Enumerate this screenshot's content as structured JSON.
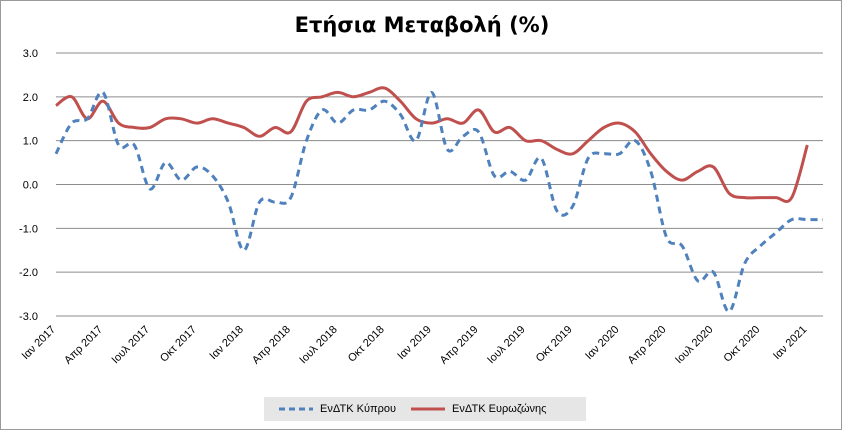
{
  "title": "Ετήσια Μεταβολή (%)",
  "chart_data": {
    "type": "line",
    "title": "Ετήσια Μεταβολή (%)",
    "xlabel": "",
    "ylabel": "",
    "ylim": [
      -3.0,
      3.0
    ],
    "y_ticks": [
      "3.0",
      "2.0",
      "1.0",
      "0.0",
      "-1.0",
      "-2.0",
      "-3.0"
    ],
    "y_tick_values": [
      3,
      2,
      1,
      0,
      -1,
      -2,
      -3
    ],
    "x_tick_labels": [
      "Ιαν 2017",
      "Απρ 2017",
      "Ιουλ 2017",
      "Οκτ 2017",
      "Ιαν 2018",
      "Απρ 2018",
      "Ιουλ 2018",
      "Οκτ 2018",
      "Ιαν 2019",
      "Απρ 2019",
      "Ιουλ 2019",
      "Οκτ 2019",
      "Ιαν 2020",
      "Απρ 2020",
      "Ιουλ 2020",
      "Οκτ 2020",
      "Ιαν 2021"
    ],
    "x": [
      "2017-01",
      "2017-02",
      "2017-03",
      "2017-04",
      "2017-05",
      "2017-06",
      "2017-07",
      "2017-08",
      "2017-09",
      "2017-10",
      "2017-11",
      "2017-12",
      "2018-01",
      "2018-02",
      "2018-03",
      "2018-04",
      "2018-05",
      "2018-06",
      "2018-07",
      "2018-08",
      "2018-09",
      "2018-10",
      "2018-11",
      "2018-12",
      "2019-01",
      "2019-02",
      "2019-03",
      "2019-04",
      "2019-05",
      "2019-06",
      "2019-07",
      "2019-08",
      "2019-09",
      "2019-10",
      "2019-11",
      "2019-12",
      "2020-01",
      "2020-02",
      "2020-03",
      "2020-04",
      "2020-05",
      "2020-06",
      "2020-07",
      "2020-08",
      "2020-09",
      "2020-10",
      "2020-11",
      "2020-12",
      "2021-01",
      "2021-02"
    ],
    "grid": true,
    "legend_position": "bottom",
    "series": [
      {
        "name": "ΕνΔΤΚ Κύπρου",
        "color": "#4f81bd",
        "style": "dashed",
        "values": [
          0.7,
          1.4,
          1.5,
          2.1,
          0.9,
          0.9,
          -0.1,
          0.5,
          0.1,
          0.4,
          0.2,
          -0.4,
          -1.5,
          -0.4,
          -0.4,
          -0.3,
          1.0,
          1.7,
          1.4,
          1.7,
          1.7,
          1.9,
          1.6,
          1.0,
          2.1,
          0.8,
          1.1,
          1.2,
          0.2,
          0.3,
          0.1,
          0.6,
          -0.6,
          -0.5,
          0.6,
          0.7,
          0.7,
          1.0,
          0.3,
          -1.2,
          -1.4,
          -2.2,
          -2.0,
          -2.9,
          -1.8,
          -1.4,
          -1.1,
          -0.8,
          -0.8,
          -0.8
        ]
      },
      {
        "name": "ΕνΔΤΚ Ευρωζώνης",
        "color": "#c0504d",
        "style": "solid",
        "values": [
          1.8,
          2.0,
          1.5,
          1.9,
          1.4,
          1.3,
          1.3,
          1.5,
          1.5,
          1.4,
          1.5,
          1.4,
          1.3,
          1.1,
          1.3,
          1.2,
          1.9,
          2.0,
          2.1,
          2.0,
          2.1,
          2.2,
          1.9,
          1.5,
          1.4,
          1.5,
          1.4,
          1.7,
          1.2,
          1.3,
          1.0,
          1.0,
          0.8,
          0.7,
          1.0,
          1.3,
          1.4,
          1.2,
          0.7,
          0.3,
          0.1,
          0.3,
          0.4,
          -0.2,
          -0.3,
          -0.3,
          -0.3,
          -0.3,
          0.9,
          null
        ]
      }
    ]
  }
}
